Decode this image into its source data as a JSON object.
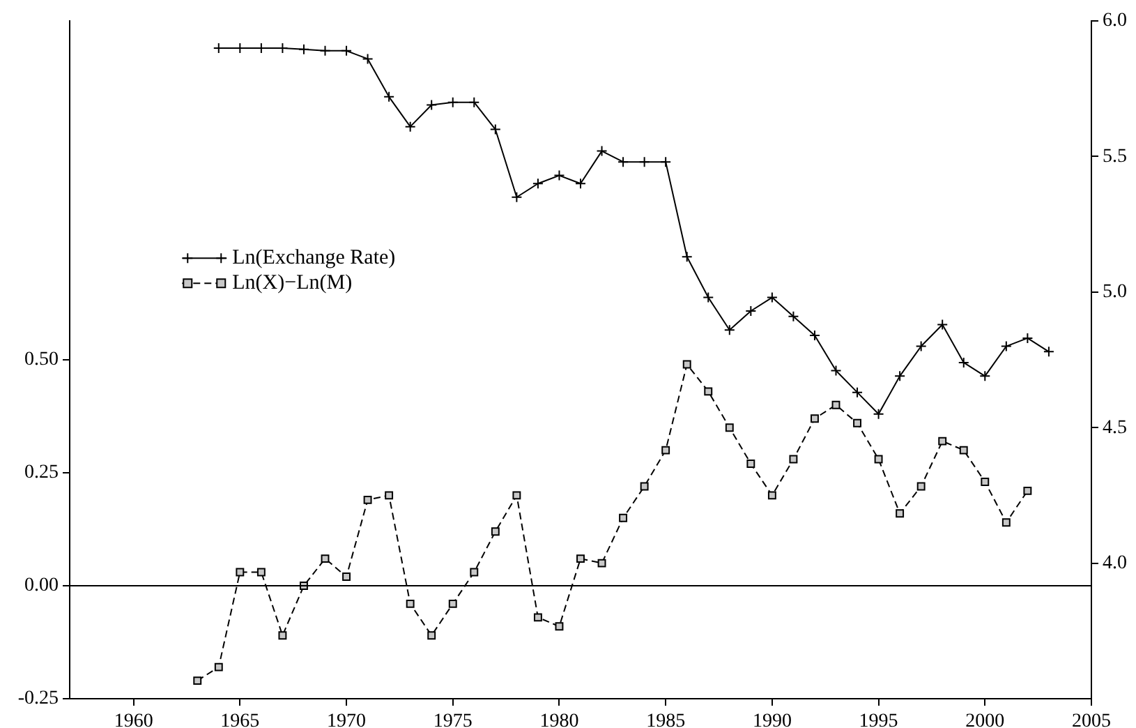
{
  "chart_data": {
    "type": "line",
    "x": [
      1963,
      1964,
      1965,
      1966,
      1967,
      1968,
      1969,
      1970,
      1971,
      1972,
      1973,
      1974,
      1975,
      1976,
      1977,
      1978,
      1979,
      1980,
      1981,
      1982,
      1983,
      1984,
      1985,
      1986,
      1987,
      1988,
      1989,
      1990,
      1991,
      1992,
      1993,
      1994,
      1995,
      1996,
      1997,
      1998,
      1999,
      2000,
      2001,
      2002,
      2003
    ],
    "series": [
      {
        "name": "Ln(Exchange Rate)",
        "color": "#000000",
        "axis": "y2",
        "marker": "cross",
        "line_style": "solid",
        "values": [
          null,
          5.9,
          5.9,
          5.9,
          5.9,
          5.895,
          5.89,
          5.89,
          5.86,
          5.72,
          5.61,
          5.69,
          5.7,
          5.7,
          5.6,
          5.35,
          5.4,
          5.43,
          5.4,
          5.52,
          5.48,
          5.48,
          5.48,
          5.13,
          4.98,
          4.86,
          4.93,
          4.98,
          4.91,
          4.84,
          4.71,
          4.63,
          4.55,
          4.69,
          4.8,
          4.88,
          4.74,
          4.69,
          4.8,
          4.83,
          4.78
        ]
      },
      {
        "name": "Ln(X)−Ln(M)",
        "color": "#000000",
        "axis": "y",
        "marker": "square",
        "line_style": "dashed",
        "values": [
          -0.21,
          -0.18,
          0.03,
          0.03,
          -0.11,
          0.0,
          0.06,
          0.02,
          0.19,
          0.2,
          -0.04,
          -0.11,
          -0.04,
          0.03,
          0.12,
          0.2,
          -0.07,
          -0.09,
          0.06,
          0.05,
          0.15,
          0.22,
          0.3,
          0.49,
          0.43,
          0.35,
          0.27,
          0.2,
          0.28,
          0.37,
          0.4,
          0.36,
          0.28,
          0.16,
          0.22,
          0.32,
          0.3,
          0.23,
          0.14,
          0.21,
          null
        ]
      }
    ],
    "xlim": [
      1957,
      2005
    ],
    "xticks": [
      1960,
      1965,
      1970,
      1975,
      1980,
      1985,
      1990,
      1995,
      2000,
      2005
    ],
    "ylim": [
      -0.25,
      1.25
    ],
    "yticks": [
      {
        "value": -0.25,
        "label": "-0.25"
      },
      {
        "value": 0,
        "label": "0.00"
      },
      {
        "value": 0.25,
        "label": "0.25"
      },
      {
        "value": 0.5,
        "label": "0.50"
      }
    ],
    "y2lim": [
      3.5,
      6.0
    ],
    "y2ticks": [
      {
        "value": 4.0,
        "label": "4.0"
      },
      {
        "value": 4.5,
        "label": "4.5"
      },
      {
        "value": 5.0,
        "label": "5.0"
      },
      {
        "value": 5.5,
        "label": "5.5"
      },
      {
        "value": 6.0,
        "label": "6.0"
      }
    ],
    "ref_lines": [
      {
        "axis": "y",
        "value": 0,
        "color": "#000000"
      }
    ],
    "grid": false,
    "legend": "left"
  }
}
